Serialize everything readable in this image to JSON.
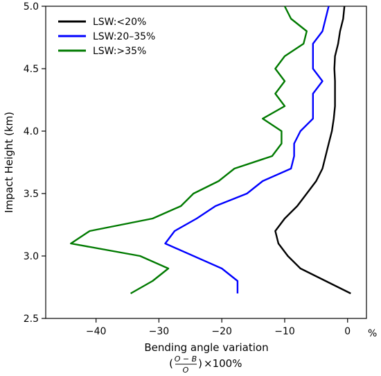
{
  "chart_data": {
    "type": "line",
    "xlabel": "Bending angle variation",
    "xlabel_formula": {
      "numerator": "O − B",
      "denominator": "O",
      "suffix": "×100%"
    },
    "x_unit": "%",
    "ylabel": "Impact Height (km)",
    "xlim": [
      -48,
      3
    ],
    "ylim": [
      2.5,
      5.0
    ],
    "xticks": [
      -40,
      -30,
      -20,
      -10,
      0
    ],
    "xtick_labels": [
      "−40",
      "−30",
      "−20",
      "−10",
      "0"
    ],
    "yticks": [
      2.5,
      3.0,
      3.5,
      4.0,
      4.5,
      5.0
    ],
    "ytick_labels": [
      "2.5",
      "3.0",
      "3.5",
      "4.0",
      "4.5",
      "5.0"
    ],
    "legend_position": "top-left",
    "series": [
      {
        "name": "LSW:<20%",
        "color": "#000000",
        "points": [
          [
            0.5,
            2.7
          ],
          [
            -3.5,
            2.8
          ],
          [
            -7.5,
            2.9
          ],
          [
            -9.5,
            3.0
          ],
          [
            -11,
            3.1
          ],
          [
            -11.5,
            3.2
          ],
          [
            -10,
            3.3
          ],
          [
            -8,
            3.4
          ],
          [
            -6.5,
            3.5
          ],
          [
            -5,
            3.6
          ],
          [
            -4,
            3.7
          ],
          [
            -3.5,
            3.8
          ],
          [
            -3,
            3.9
          ],
          [
            -2.5,
            4.0
          ],
          [
            -2.2,
            4.1
          ],
          [
            -2,
            4.2
          ],
          [
            -2,
            4.3
          ],
          [
            -2,
            4.4
          ],
          [
            -2.1,
            4.5
          ],
          [
            -2,
            4.6
          ],
          [
            -1.5,
            4.7
          ],
          [
            -1.2,
            4.8
          ],
          [
            -0.7,
            4.9
          ],
          [
            -0.5,
            5.0
          ]
        ]
      },
      {
        "name": "LSW:20–35%",
        "color": "#0000ff",
        "points": [
          [
            -17.5,
            2.7
          ],
          [
            -17.5,
            2.8
          ],
          [
            -20,
            2.9
          ],
          [
            -29,
            3.1
          ],
          [
            -27.5,
            3.2
          ],
          [
            -24,
            3.3
          ],
          [
            -21,
            3.4
          ],
          [
            -16,
            3.5
          ],
          [
            -13.5,
            3.6
          ],
          [
            -9,
            3.7
          ],
          [
            -8.5,
            3.8
          ],
          [
            -8.5,
            3.9
          ],
          [
            -7.5,
            4.0
          ],
          [
            -5.5,
            4.1
          ],
          [
            -5.5,
            4.2
          ],
          [
            -5.5,
            4.3
          ],
          [
            -4,
            4.4
          ],
          [
            -5.5,
            4.5
          ],
          [
            -5.5,
            4.6
          ],
          [
            -5.5,
            4.7
          ],
          [
            -4,
            4.8
          ],
          [
            -3.5,
            4.9
          ],
          [
            -3,
            5.0
          ]
        ]
      },
      {
        "name": "LSW:>35%",
        "color": "#007a00",
        "points": [
          [
            -34.5,
            2.7
          ],
          [
            -31,
            2.8
          ],
          [
            -28.5,
            2.9
          ],
          [
            -33,
            3.0
          ],
          [
            -44,
            3.1
          ],
          [
            -41,
            3.2
          ],
          [
            -31,
            3.3
          ],
          [
            -26.5,
            3.4
          ],
          [
            -24.5,
            3.5
          ],
          [
            -20.5,
            3.6
          ],
          [
            -18,
            3.7
          ],
          [
            -12,
            3.8
          ],
          [
            -10.5,
            3.9
          ],
          [
            -10.5,
            4.0
          ],
          [
            -13.5,
            4.1
          ],
          [
            -10,
            4.2
          ],
          [
            -11.5,
            4.3
          ],
          [
            -10,
            4.4
          ],
          [
            -11.5,
            4.5
          ],
          [
            -10,
            4.6
          ],
          [
            -7,
            4.7
          ],
          [
            -6.5,
            4.8
          ],
          [
            -9,
            4.9
          ],
          [
            -10,
            5.0
          ]
        ]
      }
    ]
  }
}
